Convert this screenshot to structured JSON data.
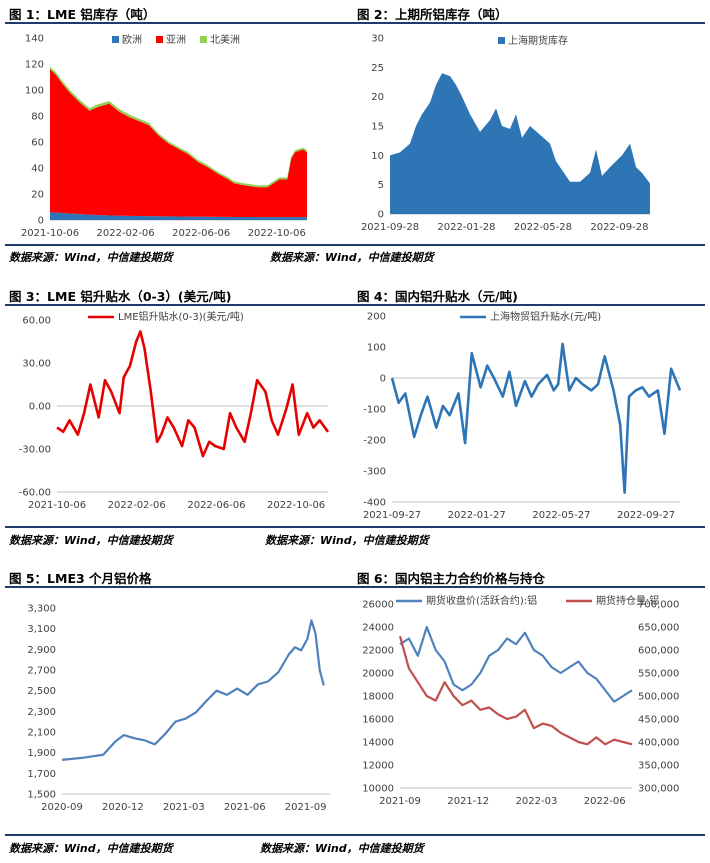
{
  "figures": {
    "fig1": {
      "title": "图 1：LME 铝库存（吨）"
    },
    "fig2": {
      "title": "图 2：上期所铝库存（吨）"
    },
    "fig3": {
      "title": "图 3：LME 铝升贴水（0-3）(美元/吨)"
    },
    "fig4": {
      "title": "图 4：国内铝升贴水（元/吨)"
    },
    "fig5": {
      "title": "图 5：LME3 个月铝价格"
    },
    "fig6": {
      "title": "图 6：国内铝主力合约价格与持仓"
    }
  },
  "sources": {
    "row1_left": "数据来源：Wind，中信建投期货",
    "row1_right": "数据来源：Wind，中信建投期货",
    "row2_left": "数据来源：Wind，中信建投期货",
    "row2_right": "数据来源：Wind，中信建投期货",
    "row3_left": "数据来源：Wind，中信建投期货",
    "row3_right": "数据来源：Wind，中信建投期货"
  },
  "colors": {
    "rule": "#1f3a6b",
    "blue": "#2e75b6",
    "red": "#ff0000",
    "green": "#92d050",
    "darkred": "#c0504d",
    "lineblue": "#4f81bd"
  },
  "chart_data": [
    {
      "id": "fig1",
      "type": "area",
      "stacked": true,
      "ylim": [
        0,
        140
      ],
      "yticks": [
        "0",
        "20",
        "40",
        "60",
        "80",
        "100",
        "120",
        "140"
      ],
      "xticks": [
        "2021-10-06",
        "2022-02-06",
        "2022-06-06",
        "2022-10-06"
      ],
      "xrange": [
        0,
        13
      ],
      "series": [
        {
          "name": "欧洲",
          "color": "#2e75b6",
          "x": [
            0,
            0.5,
            1,
            1.5,
            2,
            3,
            4,
            5,
            6,
            7,
            8,
            9,
            9.5,
            10,
            11,
            11.5,
            12,
            12.5,
            13
          ],
          "values": [
            6,
            5.5,
            5,
            4.5,
            4,
            3.5,
            3.2,
            3,
            2.8,
            2.6,
            2.5,
            2.4,
            2.3,
            2.3,
            2.2,
            2.2,
            2.2,
            2.2,
            2.2
          ]
        },
        {
          "name": "亚洲",
          "color": "#ff0000",
          "x": [
            0,
            0.3,
            0.6,
            1,
            1.5,
            2,
            2.4,
            3,
            3.5,
            4,
            5,
            5.5,
            6,
            6.5,
            7,
            7.5,
            8,
            8.5,
            9,
            9.3,
            9.6,
            10,
            10.5,
            11,
            11.3,
            11.6,
            12,
            12.2,
            12.4,
            12.8,
            13
          ],
          "values": [
            110,
            106,
            100,
            93,
            86,
            80,
            83,
            86,
            80,
            76,
            70,
            62,
            56,
            52,
            48,
            42,
            38,
            33,
            29,
            26,
            25,
            24,
            23,
            23,
            26,
            29,
            29,
            45,
            50,
            52,
            50
          ]
        },
        {
          "name": "北美洲",
          "color": "#92d050",
          "x": [
            0,
            2,
            4,
            6,
            8,
            10,
            12,
            13
          ],
          "values": [
            2,
            2,
            2,
            1.5,
            1.5,
            1.5,
            1.5,
            1.5
          ]
        }
      ]
    },
    {
      "id": "fig2",
      "type": "area",
      "ylim": [
        0,
        30
      ],
      "yticks": [
        "0",
        "5",
        "10",
        "15",
        "20",
        "25",
        "30"
      ],
      "xticks": [
        "2021-09-28",
        "2022-01-28",
        "2022-05-28",
        "2022-09-28"
      ],
      "xrange": [
        0,
        13
      ],
      "series": [
        {
          "name": "上海期货库存",
          "color": "#2e75b6",
          "x": [
            0,
            0.5,
            1,
            1.3,
            1.6,
            2,
            2.3,
            2.6,
            3,
            3.3,
            3.6,
            4,
            4.5,
            5,
            5.3,
            5.6,
            6,
            6.3,
            6.6,
            7,
            7.5,
            8,
            8.3,
            8.6,
            9,
            9.5,
            10,
            10.3,
            10.6,
            11,
            11.3,
            11.6,
            12,
            12.3,
            12.6,
            13
          ],
          "values": [
            10,
            10.5,
            12,
            15,
            17,
            19,
            22,
            24,
            23.5,
            22,
            20,
            17,
            14,
            16,
            18,
            15,
            14.5,
            17,
            13,
            15,
            13.5,
            12,
            9,
            7.5,
            5.5,
            5.5,
            7,
            11,
            6.5,
            8,
            9,
            10,
            12,
            8,
            7,
            5.2
          ]
        }
      ]
    },
    {
      "id": "fig3",
      "type": "line",
      "ylim": [
        -60,
        60
      ],
      "yticks": [
        "60.00",
        "30.00",
        "0.00",
        "-30.00",
        "-60.00"
      ],
      "xticks": [
        "2021-10-06",
        "2022-02-06",
        "2022-06-06",
        "2022-10-06"
      ],
      "xrange": [
        0,
        13
      ],
      "series": [
        {
          "name": "LME铝升贴水(0-3)(美元/吨)",
          "color": "#e60000",
          "x": [
            0,
            0.3,
            0.6,
            1,
            1.3,
            1.6,
            2,
            2.3,
            2.6,
            3,
            3.2,
            3.5,
            3.8,
            4,
            4.2,
            4.5,
            4.8,
            5,
            5.3,
            5.6,
            6,
            6.3,
            6.6,
            7,
            7.3,
            7.6,
            8,
            8.3,
            8.6,
            9,
            9.3,
            9.6,
            10,
            10.3,
            10.6,
            11,
            11.3,
            11.6,
            12,
            12.3,
            12.6,
            13
          ],
          "values": [
            -15,
            -18,
            -10,
            -20,
            -5,
            15,
            -8,
            18,
            10,
            -5,
            20,
            28,
            45,
            52,
            40,
            10,
            -25,
            -20,
            -8,
            -15,
            -28,
            -10,
            -15,
            -35,
            -25,
            -28,
            -30,
            -5,
            -15,
            -25,
            -5,
            18,
            10,
            -10,
            -20,
            -2,
            15,
            -20,
            -5,
            -15,
            -10,
            -18
          ]
        }
      ]
    },
    {
      "id": "fig4",
      "type": "line",
      "ylim": [
        -400,
        200
      ],
      "yticks": [
        "200",
        "100",
        "0",
        "-100",
        "-200",
        "-300",
        "-400"
      ],
      "xticks": [
        "2021-09-27",
        "2022-01-27",
        "2022-05-27",
        "2022-09-27"
      ],
      "xrange": [
        0,
        13
      ],
      "series": [
        {
          "name": "上海物贸铝升贴水(元/吨)",
          "color": "#2e75b6",
          "x": [
            0,
            0.3,
            0.6,
            1,
            1.3,
            1.6,
            2,
            2.3,
            2.6,
            3,
            3.3,
            3.6,
            4,
            4.3,
            4.6,
            5,
            5.3,
            5.6,
            6,
            6.3,
            6.6,
            7,
            7.3,
            7.5,
            7.7,
            8,
            8.3,
            8.6,
            9,
            9.3,
            9.6,
            10,
            10.3,
            10.5,
            10.7,
            11,
            11.3,
            11.6,
            12,
            12.3,
            12.6,
            13
          ],
          "values": [
            0,
            -80,
            -50,
            -190,
            -120,
            -60,
            -160,
            -90,
            -120,
            -50,
            -210,
            80,
            -30,
            40,
            0,
            -60,
            20,
            -90,
            -10,
            -60,
            -20,
            10,
            -40,
            -20,
            110,
            -40,
            0,
            -20,
            -40,
            -20,
            70,
            -40,
            -150,
            -370,
            -60,
            -40,
            -30,
            -60,
            -40,
            -180,
            30,
            -40
          ]
        }
      ]
    },
    {
      "id": "fig5",
      "type": "line",
      "ylim": [
        1500,
        3300
      ],
      "yticks": [
        "3,300",
        "3,100",
        "2,900",
        "2,700",
        "2,500",
        "2,300",
        "2,100",
        "1,900",
        "1,700",
        "1,500"
      ],
      "xticks": [
        "2020-09",
        "2020-12",
        "2021-03",
        "2021-06",
        "2021-09"
      ],
      "xrange": [
        0,
        13
      ],
      "series": [
        {
          "color": "#4f81bd",
          "x": [
            0,
            1,
            2,
            2.6,
            3,
            3.5,
            4,
            4.5,
            5,
            5.5,
            6,
            6.5,
            7,
            7.5,
            8,
            8.5,
            9,
            9.5,
            10,
            10.5,
            11,
            11.3,
            11.6,
            11.9,
            12.1,
            12.3,
            12.5,
            12.7
          ],
          "values": [
            1830,
            1850,
            1880,
            2010,
            2070,
            2040,
            2020,
            1980,
            2080,
            2200,
            2230,
            2290,
            2400,
            2500,
            2460,
            2520,
            2460,
            2560,
            2590,
            2680,
            2850,
            2920,
            2890,
            3000,
            3180,
            3050,
            2700,
            2550
          ]
        }
      ]
    },
    {
      "id": "fig6",
      "type": "line",
      "ylim": [
        10000,
        26000
      ],
      "y2lim": [
        300000,
        700000
      ],
      "yticks": [
        "26000",
        "24000",
        "22000",
        "20000",
        "18000",
        "16000",
        "14000",
        "12000",
        "10000"
      ],
      "y2ticks": [
        "700,000",
        "650,000",
        "600,000",
        "550,000",
        "500,000",
        "450,000",
        "400,000",
        "350,000",
        "300,000"
      ],
      "xticks": [
        "2021-09",
        "2021-12",
        "2022-03",
        "2022-06"
      ],
      "xrange": [
        0,
        13
      ],
      "series": [
        {
          "name": "期货收盘价(活跃合约):铝",
          "color": "#4f81bd",
          "axis": "left",
          "x": [
            0,
            0.5,
            1,
            1.5,
            2,
            2.5,
            3,
            3.5,
            4,
            4.5,
            5,
            5.5,
            6,
            6.5,
            7,
            7.5,
            8,
            8.5,
            9,
            9.5,
            10,
            10.5,
            11,
            11.5,
            12,
            12.5,
            13
          ],
          "values": [
            22500,
            23000,
            21500,
            24000,
            22000,
            21000,
            19000,
            18500,
            19000,
            20000,
            21500,
            22000,
            23000,
            22500,
            23500,
            22000,
            21500,
            20500,
            20000,
            20500,
            21000,
            20000,
            19500,
            18500,
            17500,
            18000,
            18500
          ]
        },
        {
          "name": "期货持仓量:铝",
          "color": "#c0504d",
          "axis": "right",
          "x": [
            0,
            0.5,
            1,
            1.5,
            2,
            2.5,
            3,
            3.5,
            4,
            4.5,
            5,
            5.5,
            6,
            6.5,
            7,
            7.5,
            8,
            8.5,
            9,
            9.5,
            10,
            10.5,
            11,
            11.5,
            12,
            12.5,
            13
          ],
          "values": [
            630000,
            560000,
            530000,
            500000,
            490000,
            530000,
            500000,
            480000,
            490000,
            470000,
            475000,
            460000,
            450000,
            455000,
            470000,
            430000,
            440000,
            435000,
            420000,
            410000,
            400000,
            395000,
            410000,
            395000,
            405000,
            400000,
            395000
          ]
        }
      ]
    }
  ]
}
